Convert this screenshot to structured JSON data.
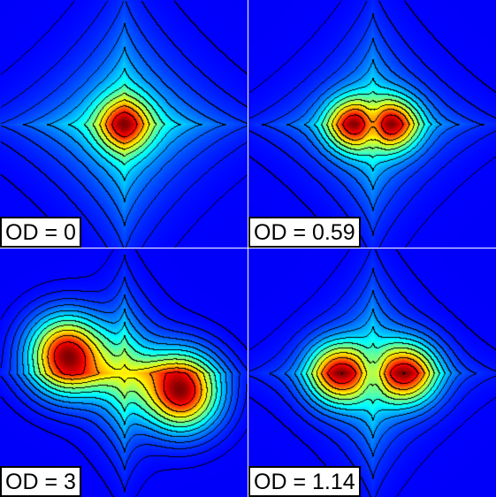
{
  "panels": [
    {
      "label": "OD = 0",
      "od": 0,
      "peak_separation": 0.0,
      "tilt": 0.0
    },
    {
      "label": "OD = 0.59",
      "od": 0.59,
      "peak_separation": 0.6,
      "tilt": 0.0
    },
    {
      "label": "OD = 3",
      "od": 3,
      "peak_separation": 2.2,
      "tilt": 0.6
    },
    {
      "label": "OD = 1.14",
      "od": 1.14,
      "peak_separation": 1.1,
      "tilt": 0.0
    }
  ],
  "colormap": "jet",
  "contour_color": "#000000",
  "contour_levels": 12
}
